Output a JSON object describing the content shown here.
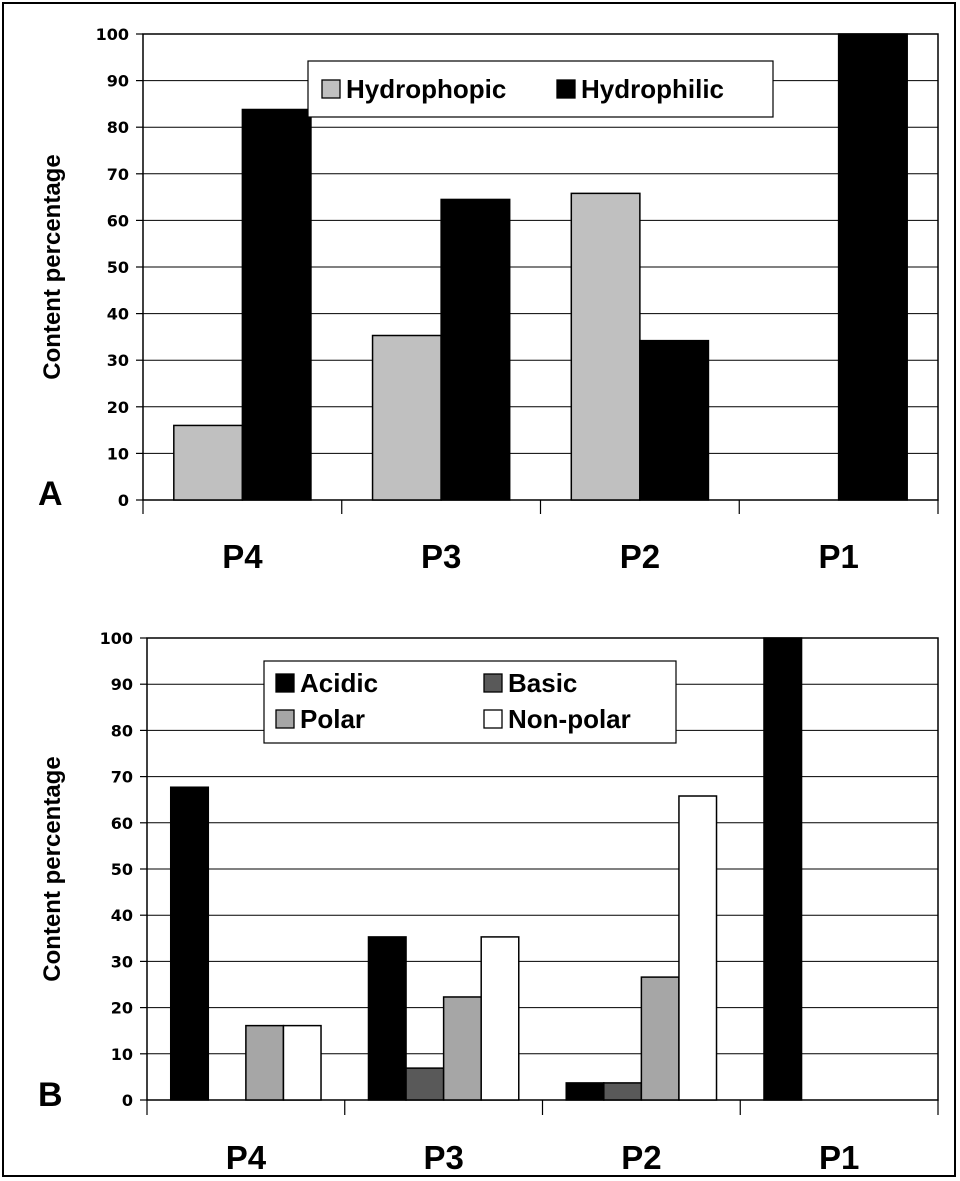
{
  "chart_data": [
    {
      "type": "bar",
      "panel_label": "A",
      "ylabel": "Content  percentage",
      "xlabel": "",
      "ylim": [
        0,
        100
      ],
      "yticks": [
        0,
        10,
        20,
        30,
        40,
        50,
        60,
        70,
        80,
        90,
        100
      ],
      "grid": true,
      "legend_position": "top-center",
      "categories": [
        "P4",
        "P3",
        "P2",
        "P1"
      ],
      "series": [
        {
          "name": "Hydrophopic",
          "color": "#c0c0c0",
          "values": [
            16,
            35.3,
            65.8,
            0
          ]
        },
        {
          "name": "Hydrophilic",
          "color": "#000000",
          "values": [
            83.8,
            64.5,
            34.2,
            100
          ]
        }
      ]
    },
    {
      "type": "bar",
      "panel_label": "B",
      "ylabel": "Content  percentage",
      "xlabel": "",
      "ylim": [
        0,
        100
      ],
      "yticks": [
        0,
        10,
        20,
        30,
        40,
        50,
        60,
        70,
        80,
        90,
        100
      ],
      "grid": true,
      "legend_position": "top-center",
      "categories": [
        "P4",
        "P3",
        "P2",
        "P1"
      ],
      "series": [
        {
          "name": "Acidic",
          "color": "#000000",
          "values": [
            67.7,
            35.3,
            3.7,
            100
          ]
        },
        {
          "name": "Basic",
          "color": "#595959",
          "values": [
            0,
            6.9,
            3.7,
            0
          ]
        },
        {
          "name": "Polar",
          "color": "#a6a6a6",
          "values": [
            16.1,
            22.3,
            26.6,
            0
          ]
        },
        {
          "name": "Non-polar",
          "color": "#ffffff",
          "values": [
            16.1,
            35.3,
            65.8,
            0
          ]
        }
      ]
    }
  ]
}
